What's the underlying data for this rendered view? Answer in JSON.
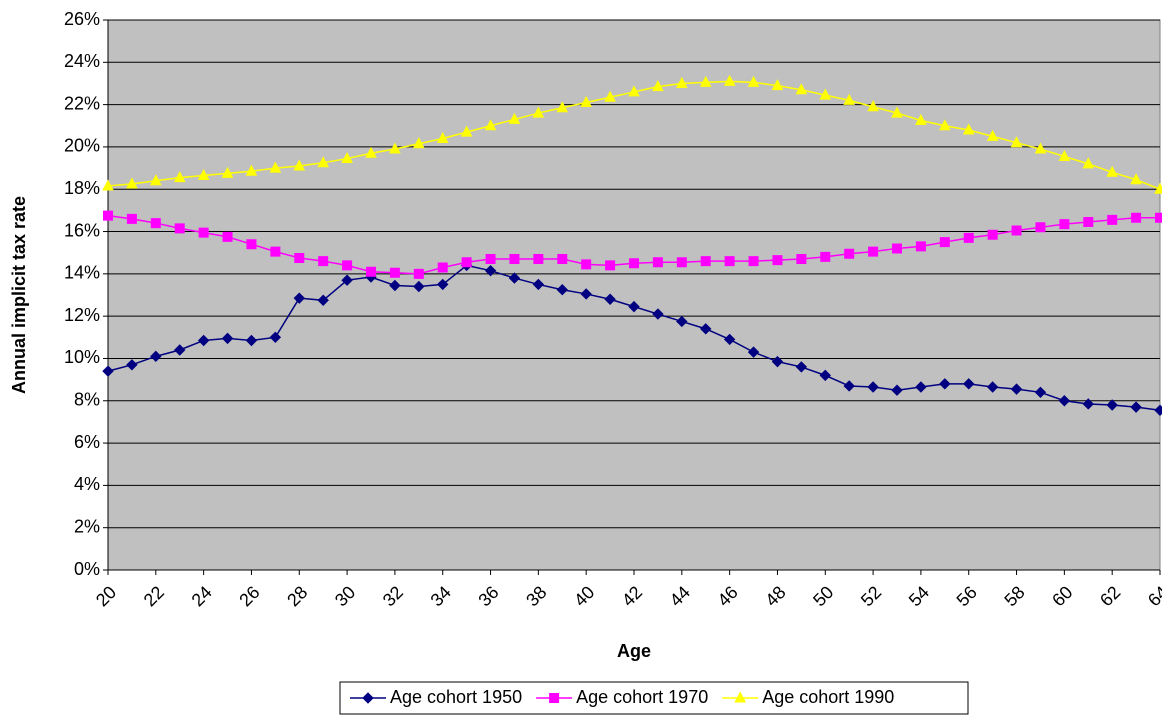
{
  "chart_data": {
    "type": "line",
    "x_label": "Age",
    "y_label": "Annual implicit tax rate",
    "x": [
      20,
      21,
      22,
      23,
      24,
      25,
      26,
      27,
      28,
      29,
      30,
      31,
      32,
      33,
      34,
      35,
      36,
      37,
      38,
      39,
      40,
      41,
      42,
      43,
      44,
      45,
      46,
      47,
      48,
      49,
      50,
      51,
      52,
      53,
      54,
      55,
      56,
      57,
      58,
      59,
      60,
      61,
      62,
      63,
      64
    ],
    "xlim": [
      20,
      64
    ],
    "xticks": [
      20,
      22,
      24,
      26,
      28,
      30,
      32,
      34,
      36,
      38,
      40,
      42,
      44,
      46,
      48,
      50,
      52,
      54,
      56,
      58,
      60,
      62,
      64
    ],
    "ylim": [
      0,
      26
    ],
    "yticks": [
      {
        "value": 0,
        "label": "0%"
      },
      {
        "value": 2,
        "label": "2%"
      },
      {
        "value": 4,
        "label": "4%"
      },
      {
        "value": 6,
        "label": "6%"
      },
      {
        "value": 8,
        "label": "8%"
      },
      {
        "value": 10,
        "label": "10%"
      },
      {
        "value": 12,
        "label": "12%"
      },
      {
        "value": 14,
        "label": "14%"
      },
      {
        "value": 16,
        "label": "16%"
      },
      {
        "value": 18,
        "label": "18%"
      },
      {
        "value": 20,
        "label": "20%"
      },
      {
        "value": 22,
        "label": "22%"
      },
      {
        "value": 24,
        "label": "24%"
      },
      {
        "value": 26,
        "label": "26%"
      }
    ],
    "grid": true,
    "plot_background": "#c0c0c0",
    "legend": "bottom",
    "series": [
      {
        "name": "Age cohort 1950",
        "color": "#000080",
        "marker": "diamond",
        "values": [
          9.4,
          9.7,
          10.1,
          10.4,
          10.85,
          10.95,
          10.85,
          11.0,
          12.85,
          12.75,
          13.7,
          13.85,
          13.45,
          13.4,
          13.5,
          14.4,
          14.15,
          13.8,
          13.5,
          13.25,
          13.05,
          12.8,
          12.45,
          12.1,
          11.75,
          11.4,
          10.9,
          10.3,
          9.85,
          9.6,
          9.2,
          8.7,
          8.65,
          8.5,
          8.65,
          8.8,
          8.8,
          8.65,
          8.55,
          8.4,
          8.0,
          7.85,
          7.8,
          7.7,
          7.55
        ]
      },
      {
        "name": "Age cohort 1970",
        "color": "#ff00ff",
        "marker": "square",
        "values": [
          16.75,
          16.6,
          16.4,
          16.15,
          15.95,
          15.75,
          15.4,
          15.05,
          14.75,
          14.6,
          14.4,
          14.1,
          14.05,
          14.0,
          14.3,
          14.55,
          14.7,
          14.7,
          14.7,
          14.7,
          14.45,
          14.4,
          14.5,
          14.55,
          14.55,
          14.6,
          14.6,
          14.6,
          14.65,
          14.7,
          14.8,
          14.95,
          15.05,
          15.2,
          15.3,
          15.5,
          15.7,
          15.85,
          16.05,
          16.2,
          16.35,
          16.45,
          16.55,
          16.65,
          16.65
        ]
      },
      {
        "name": "Age cohort 1990",
        "color": "#ffff00",
        "marker": "triangle",
        "values": [
          18.15,
          18.25,
          18.4,
          18.55,
          18.65,
          18.75,
          18.85,
          19.0,
          19.1,
          19.25,
          19.45,
          19.7,
          19.9,
          20.15,
          20.4,
          20.7,
          21.0,
          21.3,
          21.6,
          21.85,
          22.1,
          22.35,
          22.6,
          22.85,
          23.0,
          23.05,
          23.1,
          23.05,
          22.9,
          22.7,
          22.45,
          22.2,
          21.9,
          21.6,
          21.25,
          21.0,
          20.8,
          20.5,
          20.2,
          19.9,
          19.55,
          19.2,
          18.8,
          18.45,
          18.0
        ]
      }
    ]
  }
}
